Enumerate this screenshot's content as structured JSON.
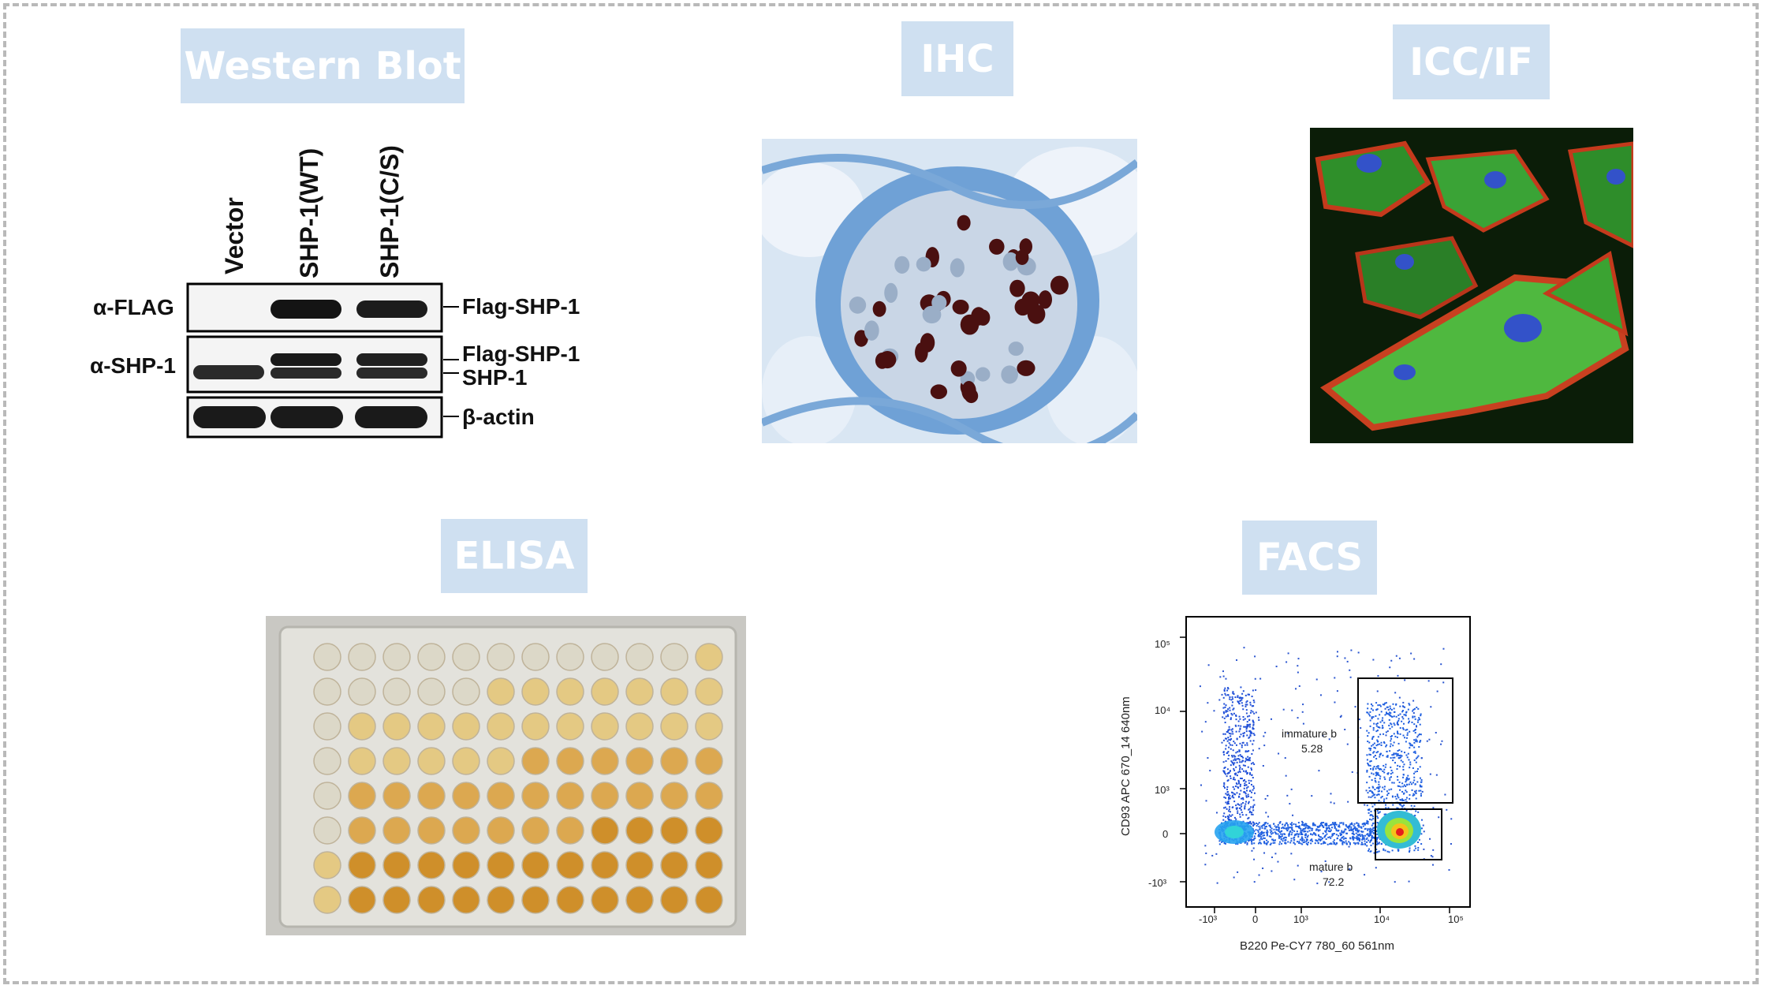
{
  "badges": {
    "western_blot": "Western Blot",
    "ihc": "IHC",
    "icc_if": "ICC/IF",
    "elisa": "ELISA",
    "facs": "FACS"
  },
  "western_blot": {
    "lanes": [
      "Vector",
      "SHP-1(WT)",
      "SHP-1(C/S)"
    ],
    "row_labels": [
      "α-FLAG",
      "α-SHP-1"
    ],
    "band_labels": [
      "Flag-SHP-1",
      "Flag-SHP-1",
      "SHP-1",
      "β-actin"
    ]
  },
  "facs": {
    "x_label": "B220 Pe-CY7 780_60 561nm",
    "y_label": "CD93 APC 670_14 640nm",
    "gates": [
      {
        "name": "immature b",
        "value": "5.28"
      },
      {
        "name": "mature b",
        "value": "72.2"
      }
    ],
    "y_ticks": [
      "10⁵",
      "10⁴",
      "10³",
      "0",
      "-10³"
    ],
    "x_ticks": [
      "-10³",
      "0",
      "10³",
      "10⁴",
      "10⁵"
    ]
  }
}
